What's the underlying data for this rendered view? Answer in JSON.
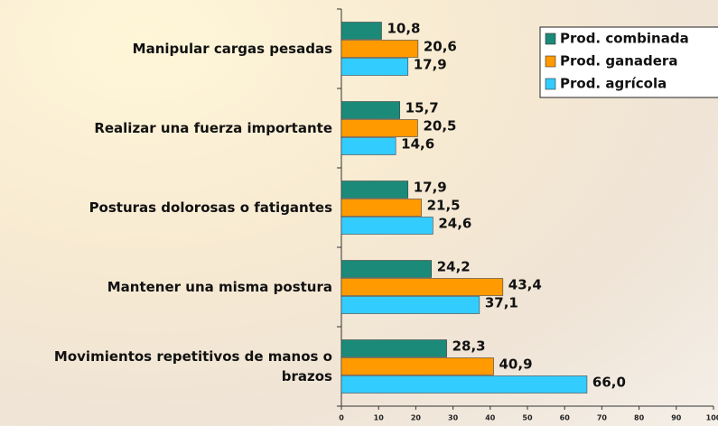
{
  "chart_data": {
    "type": "hbar",
    "categories": [
      "Manipular cargas pesadas",
      "Realizar una fuerza importante",
      "Posturas dolorosas o fatigantes",
      "Mantener una misma postura",
      "Movimientos repetitivos de manos o brazos"
    ],
    "series": [
      {
        "name": "Prod. combinada",
        "color": "#1b8a78",
        "values": [
          10.8,
          15.7,
          17.9,
          24.2,
          28.3
        ],
        "value_labels": [
          "10,8",
          "15,7",
          "17,9",
          "24,2",
          "28,3"
        ]
      },
      {
        "name": "Prod. ganadera",
        "color": "#ff9a00",
        "values": [
          20.6,
          20.5,
          21.5,
          43.4,
          40.9
        ],
        "value_labels": [
          "20,6",
          "20,5",
          "21,5",
          "43,4",
          "40,9"
        ]
      },
      {
        "name": "Prod. agrícola",
        "color": "#33ccff",
        "values": [
          17.9,
          14.6,
          24.6,
          37.1,
          66.0
        ],
        "value_labels": [
          "17,9",
          "14,6",
          "24,6",
          "37,1",
          "66,0"
        ]
      }
    ],
    "xlim": [
      0,
      100
    ],
    "xticks": [
      0,
      10,
      20,
      30,
      40,
      50,
      60,
      70,
      80,
      90,
      100
    ],
    "legend": "upper right"
  }
}
